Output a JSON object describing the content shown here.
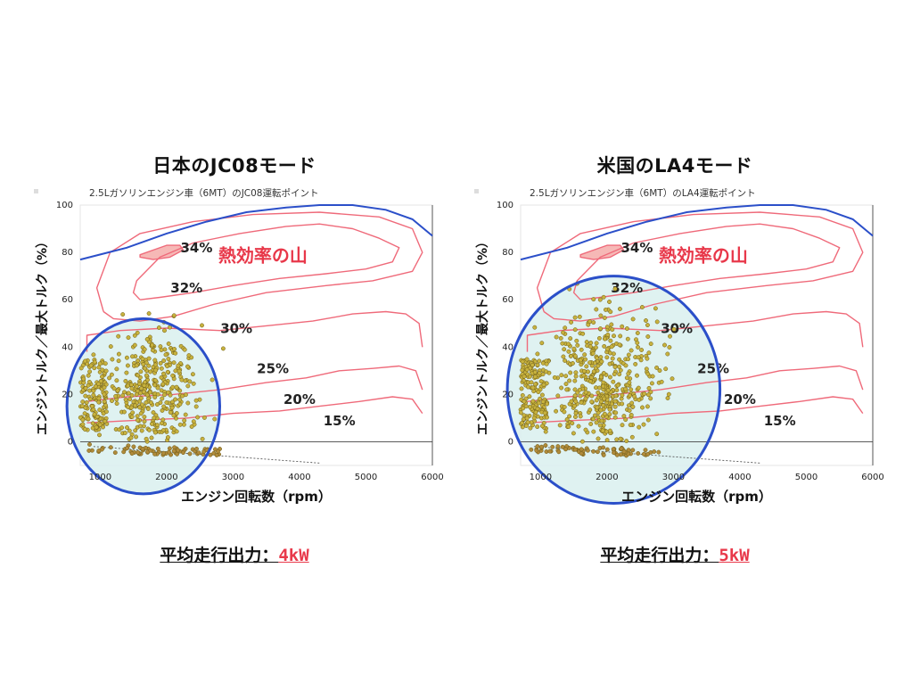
{
  "panels": [
    {
      "title": "日本のJC08モード",
      "power_label": "平均走行出力：",
      "power_value": "4kW"
    },
    {
      "title": "米国のLA4モード",
      "power_label": "平均走行出力：",
      "power_value": "5kW"
    }
  ],
  "colors": {
    "contour": "#ef6a7a",
    "max_torque": "#2b4fc9",
    "circle": "#2b4fc9",
    "circle_fill": "#d9f0ee",
    "peak_fill": "#f6b8b6",
    "points": "#c7b23e",
    "points_edge": "#6b5a16",
    "heat_label": "#e8384a",
    "axis_text": "#222222"
  },
  "chart_data": [
    {
      "type": "scatter",
      "title": "2.5Lガソリンエンジン車（6MT）のJC08運転ポイント",
      "xlabel": "エンジン回転数（rpm）",
      "ylabel": "エンジントルク／最大トルク（%）",
      "xlim": [
        700,
        6000
      ],
      "ylim": [
        -10,
        100
      ],
      "x_ticks": [
        "1000",
        "2000",
        "3000",
        "4000",
        "5000",
        "6000"
      ],
      "y_ticks": [
        "0",
        "20",
        "40",
        "60",
        "80",
        "100"
      ],
      "contour_labels": [
        "34%",
        "32%",
        "30%",
        "25%",
        "20%",
        "15%"
      ],
      "annotation": "熱効率の山",
      "point_cloud": {
        "x_center": 1800,
        "x_spread": 350,
        "y_center": 22,
        "y_spread": 13,
        "x_min": 700,
        "x_max": 3000,
        "y_max": 55,
        "count": 520
      },
      "operating_circle": {
        "x_center": 1650,
        "y_center": 15,
        "x_radius": 1150,
        "y_radius": 37
      },
      "grid": false
    },
    {
      "type": "scatter",
      "title": "2.5Lガソリンエンジン車（6MT）のLA4運転ポイント",
      "xlabel": "エンジン回転数（rpm）",
      "ylabel": "エンジントルク／最大トルク（%）",
      "xlim": [
        700,
        6000
      ],
      "ylim": [
        -10,
        100
      ],
      "x_ticks": [
        "1000",
        "2000",
        "3000",
        "4000",
        "5000",
        "6000"
      ],
      "y_ticks": [
        "0",
        "20",
        "40",
        "60",
        "80",
        "100"
      ],
      "contour_labels": [
        "34%",
        "32%",
        "30%",
        "25%",
        "20%",
        "15%"
      ],
      "annotation": "熱効率の山",
      "point_cloud": {
        "x_center": 1950,
        "x_spread": 400,
        "y_center": 25,
        "y_spread": 15,
        "x_min": 700,
        "x_max": 3100,
        "y_max": 68,
        "count": 620
      },
      "operating_circle": {
        "x_center": 2100,
        "y_center": 22,
        "x_radius": 1600,
        "y_radius": 48
      },
      "grid": false
    }
  ]
}
